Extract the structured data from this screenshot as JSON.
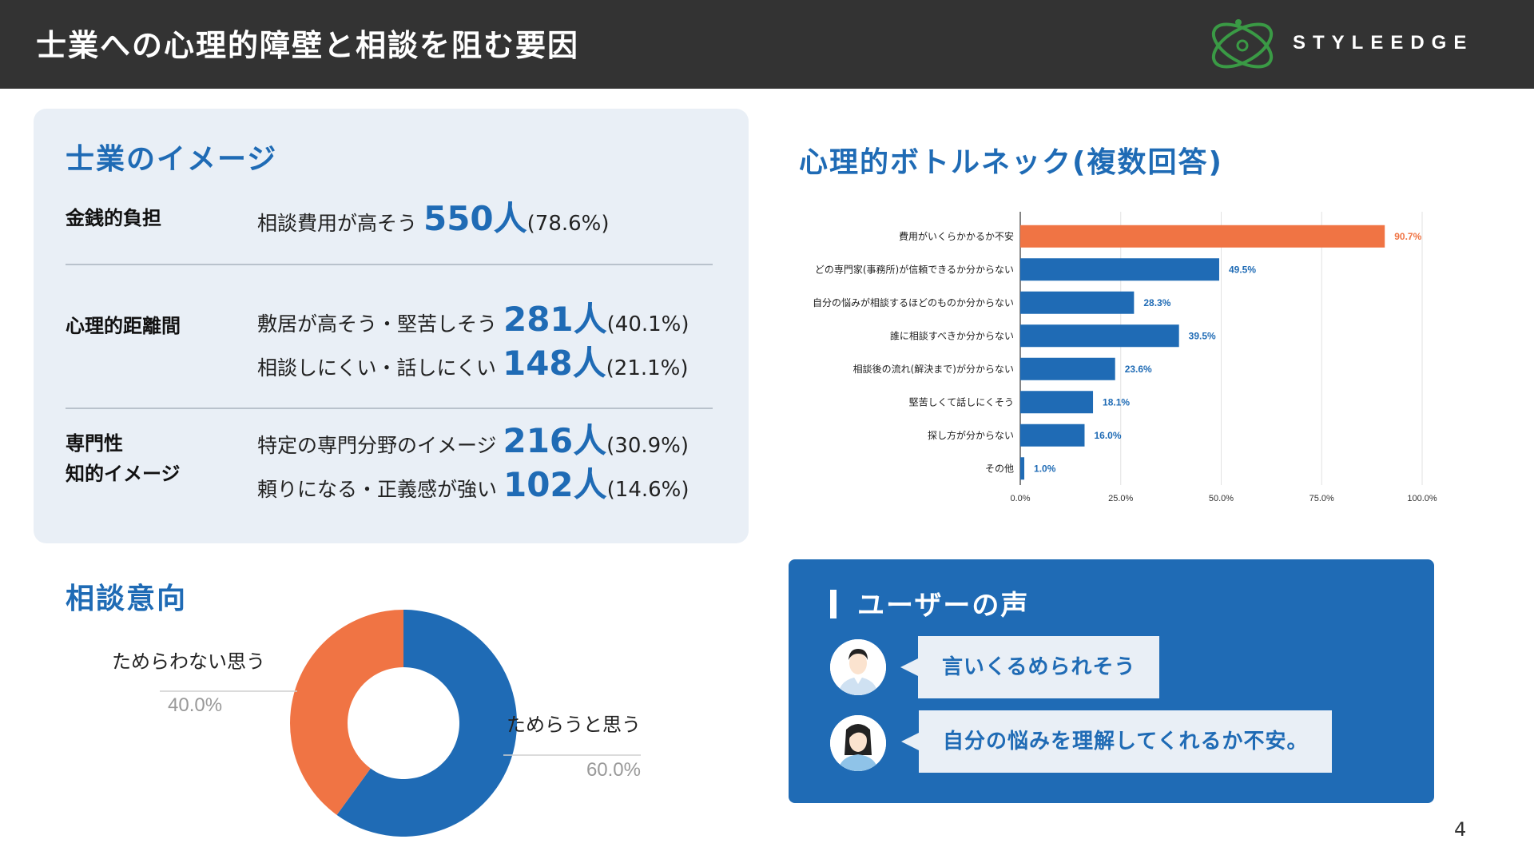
{
  "header": {
    "title": "士業への心理的障壁と相談を阻む要因",
    "logo_text": "STYLEEDGE"
  },
  "image_section": {
    "title": "士業のイメージ",
    "rows": [
      {
        "label_lines": [
          "金銭的負担"
        ],
        "items": [
          {
            "text": "相談費用が高そう",
            "count": "550人",
            "pct": "(78.6%)"
          }
        ]
      },
      {
        "label_lines": [
          "心理的距離間"
        ],
        "items": [
          {
            "text": "敷居が高そう・堅苦しそう",
            "count": "281人",
            "pct": "(40.1%)"
          },
          {
            "text": "相談しにくい・話しにくい",
            "count": "148人",
            "pct": "(21.1%)"
          }
        ]
      },
      {
        "label_lines": [
          "専門性",
          "知的イメージ"
        ],
        "items": [
          {
            "text": "特定の専門分野のイメージ",
            "count": "216人",
            "pct": "(30.9%)"
          },
          {
            "text": "頼りになる・正義感が強い",
            "count": "102人",
            "pct": "(14.6%)"
          }
        ]
      }
    ]
  },
  "chart_data": [
    {
      "type": "bar",
      "orientation": "horizontal",
      "title": "心理的ボトルネック(複数回答)",
      "categories": [
        "費用がいくらかかるか不安",
        "どの専門家(事務所)が信頼できるか分からない",
        "自分の悩みが相談するほどのものか分からない",
        "誰に相談すべきか分からない",
        "相談後の流れ(解決まで)が分からない",
        "堅苦しくて話しにくそう",
        "探し方が分からない",
        "その他"
      ],
      "values": [
        90.7,
        49.5,
        28.3,
        39.5,
        23.6,
        18.1,
        16.0,
        1.0
      ],
      "value_labels": [
        "90.7%",
        "49.5%",
        "28.3%",
        "39.5%",
        "23.6%",
        "18.1%",
        "16.0%",
        "1.0%"
      ],
      "highlight_index": 0,
      "xlim": [
        0,
        100
      ],
      "xticks": [
        "0.0%",
        "25.0%",
        "50.0%",
        "75.0%",
        "100.0%"
      ],
      "grid": true,
      "colors": {
        "default": "#1f6bb5",
        "highlight": "#f07444"
      }
    },
    {
      "type": "pie",
      "title": "相談意向",
      "donut": true,
      "slices": [
        {
          "label": "ためらうと思う",
          "value": 60.0,
          "value_label": "60.0%",
          "color": "#1f6bb5"
        },
        {
          "label": "ためらわない思う",
          "value": 40.0,
          "value_label": "40.0%",
          "color": "#f07444"
        }
      ]
    }
  ],
  "voice": {
    "title": "ユーザーの声",
    "items": [
      {
        "text": "言いくるめられそう",
        "avatar": "man-avatar-icon"
      },
      {
        "text": "自分の悩みを理解してくれるか不安。",
        "avatar": "woman-avatar-icon"
      }
    ]
  },
  "page_number": "4"
}
